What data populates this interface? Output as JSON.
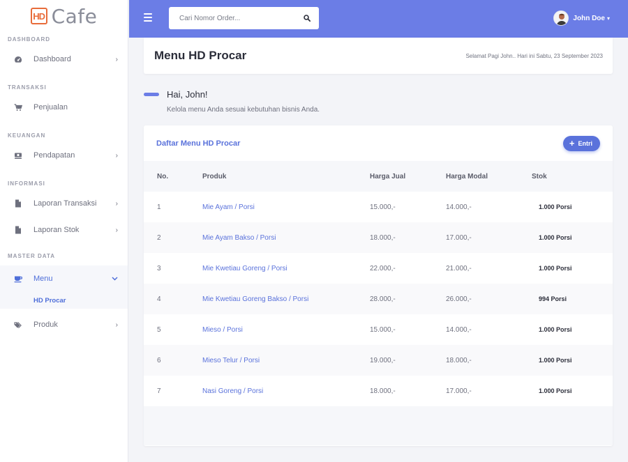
{
  "brand": {
    "logo": "HD",
    "name": "Cafe"
  },
  "sidebar": {
    "sections": [
      {
        "heading": "DASHBOARD",
        "items": [
          {
            "label": "Dashboard",
            "icon": "speedometer-icon",
            "chevron": "›"
          }
        ]
      },
      {
        "heading": "TRANSAKSI",
        "items": [
          {
            "label": "Penjualan",
            "icon": "cart-icon"
          }
        ]
      },
      {
        "heading": "KEUANGAN",
        "items": [
          {
            "label": "Pendapatan",
            "icon": "money-icon",
            "chevron": "›"
          }
        ]
      },
      {
        "heading": "INFORMASI",
        "items": [
          {
            "label": "Laporan Transaksi",
            "icon": "file-icon",
            "chevron": "›"
          },
          {
            "label": "Laporan Stok",
            "icon": "file-icon",
            "chevron": "›"
          }
        ]
      },
      {
        "heading": "MASTER DATA",
        "items": [
          {
            "label": "Menu",
            "icon": "coffee-icon",
            "chevron": "⌄",
            "active": true,
            "sub": "HD Procar"
          },
          {
            "label": "Produk",
            "icon": "tags-icon",
            "chevron": "›"
          }
        ]
      }
    ]
  },
  "topbar": {
    "search_placeholder": "Cari Nomor Order...",
    "user_name": "John Doe",
    "user_caret": "▾"
  },
  "header": {
    "title": "Menu HD Procar",
    "greeting_date": "Selamat Pagi John.. Hari ini Sabtu, 23 September 2023"
  },
  "hello": {
    "title": "Hai, John!",
    "subtitle": "Kelola menu Anda sesuai kebutuhan bisnis Anda."
  },
  "card": {
    "title": "Daftar Menu HD Procar",
    "button_plus": "+",
    "button_label": "Entri",
    "columns": [
      "No.",
      "Produk",
      "Harga Jual",
      "Harga Modal",
      "Stok"
    ],
    "rows": [
      {
        "no": "1",
        "produk": "Mie Ayam / Porsi",
        "jual": "15.000,-",
        "modal": "14.000,-",
        "stok": "1.000 Porsi"
      },
      {
        "no": "2",
        "produk": "Mie Ayam Bakso / Porsi",
        "jual": "18.000,-",
        "modal": "17.000,-",
        "stok": "1.000 Porsi"
      },
      {
        "no": "3",
        "produk": "Mie Kwetiau Goreng / Porsi",
        "jual": "22.000,-",
        "modal": "21.000,-",
        "stok": "1.000 Porsi"
      },
      {
        "no": "4",
        "produk": "Mie Kwetiau Goreng Bakso / Porsi",
        "jual": "28.000,-",
        "modal": "26.000,-",
        "stok": "994 Porsi"
      },
      {
        "no": "5",
        "produk": "Mieso / Porsi",
        "jual": "15.000,-",
        "modal": "14.000,-",
        "stok": "1.000 Porsi"
      },
      {
        "no": "6",
        "produk": "Mieso Telur / Porsi",
        "jual": "19.000,-",
        "modal": "18.000,-",
        "stok": "1.000 Porsi"
      },
      {
        "no": "7",
        "produk": "Nasi Goreng / Porsi",
        "jual": "18.000,-",
        "modal": "17.000,-",
        "stok": "1.000 Porsi"
      }
    ]
  },
  "colors": {
    "primary": "#6b7de6",
    "link": "#5a72db",
    "brand": "#e86c3a"
  }
}
